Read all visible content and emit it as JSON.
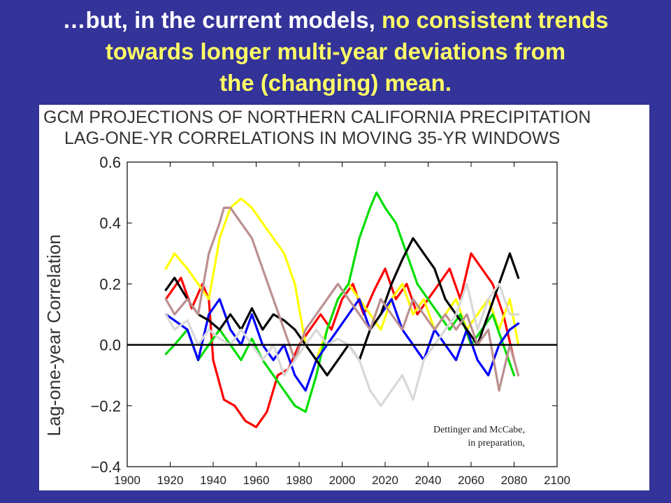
{
  "slide": {
    "title_line1_a": "…but, in the current models, ",
    "title_line1_b": "no consistent trends",
    "title_line2": "towards longer multi-year deviations from",
    "title_line3": "the (changing) mean.",
    "title_color": "#ffffff",
    "highlight_color": "#ffff66",
    "background": "#333399"
  },
  "credit": {
    "line1": "Dettinger and McCabe,",
    "line2": "in preparation,"
  },
  "chart_data": {
    "type": "line",
    "title": "GCM PROJECTIONS OF NORTHERN CALIFORNIA PRECIPITATION",
    "subtitle": "LAG-ONE-YR CORRELATIONS IN MOVING 35-YR WINDOWS",
    "xlabel": "",
    "ylabel": "Lag-one-year Correlation",
    "xlim": [
      1900,
      2100
    ],
    "ylim": [
      -0.4,
      0.6
    ],
    "xticks": [
      1900,
      1920,
      1940,
      1960,
      1980,
      2000,
      2020,
      2040,
      2060,
      2080,
      2100
    ],
    "yticks": [
      -0.4,
      -0.2,
      0.0,
      0.2,
      0.4,
      0.6
    ],
    "ytick_labels": [
      "−0.4",
      "−0.2",
      "0.0",
      "0.2",
      "0.4",
      "0.6"
    ],
    "zero_line": 0.0,
    "grid": false,
    "legend": "none",
    "series": [
      {
        "color": "#ff0000",
        "x": [
          1918,
          1925,
          1930,
          1935,
          1938,
          1940,
          1945,
          1950,
          1955,
          1960,
          1965,
          1970,
          1975,
          1980,
          1985,
          1990,
          1995,
          2000,
          2005,
          2010,
          2015,
          2020,
          2025,
          2030,
          2035,
          2040,
          2045,
          2050,
          2055,
          2060,
          2065,
          2070,
          2075,
          2080
        ],
        "y": [
          0.15,
          0.22,
          0.12,
          0.2,
          0.15,
          -0.05,
          -0.18,
          -0.2,
          -0.25,
          -0.27,
          -0.22,
          -0.1,
          -0.08,
          0.0,
          0.05,
          0.1,
          0.05,
          0.15,
          0.2,
          0.1,
          0.18,
          0.25,
          0.15,
          0.2,
          0.1,
          0.15,
          0.2,
          0.25,
          0.15,
          0.3,
          0.25,
          0.2,
          0.1,
          -0.05
        ]
      },
      {
        "color": "#ffff00",
        "x": [
          1918,
          1922,
          1928,
          1933,
          1938,
          1943,
          1948,
          1953,
          1958,
          1963,
          1968,
          1973,
          1978,
          1983,
          1988,
          1993,
          1998,
          2003,
          2008,
          2013,
          2018,
          2023,
          2028,
          2033,
          2038,
          2043,
          2048,
          2053,
          2058,
          2063,
          2068,
          2073,
          2078,
          2082
        ],
        "y": [
          0.25,
          0.3,
          0.25,
          0.2,
          0.15,
          0.35,
          0.45,
          0.48,
          0.45,
          0.4,
          0.35,
          0.3,
          0.2,
          0.0,
          -0.05,
          0.05,
          0.15,
          0.2,
          0.15,
          0.1,
          0.05,
          0.15,
          0.2,
          0.1,
          0.15,
          0.05,
          0.1,
          0.15,
          0.05,
          0.1,
          0.15,
          0.05,
          0.15,
          0.0
        ]
      },
      {
        "color": "#00dd00",
        "x": [
          1918,
          1922,
          1928,
          1933,
          1938,
          1943,
          1948,
          1953,
          1958,
          1963,
          1968,
          1973,
          1978,
          1983,
          1988,
          1993,
          1998,
          2003,
          2008,
          2013,
          2016,
          2020,
          2025,
          2030,
          2035,
          2040,
          2045,
          2050,
          2055,
          2060,
          2065,
          2070,
          2075,
          2080
        ],
        "y": [
          -0.03,
          0.0,
          0.05,
          -0.05,
          0.0,
          0.05,
          0.0,
          -0.05,
          0.02,
          -0.05,
          -0.1,
          -0.15,
          -0.2,
          -0.22,
          -0.1,
          0.05,
          0.15,
          0.2,
          0.35,
          0.45,
          0.5,
          0.45,
          0.4,
          0.3,
          0.2,
          0.15,
          0.1,
          0.05,
          0.1,
          0.0,
          0.05,
          0.1,
          0.0,
          -0.1
        ]
      },
      {
        "color": "#0000ff",
        "x": [
          1918,
          1922,
          1928,
          1933,
          1938,
          1943,
          1948,
          1953,
          1958,
          1963,
          1968,
          1973,
          1978,
          1983,
          1988,
          1993,
          1998,
          2003,
          2008,
          2013,
          2018,
          2023,
          2028,
          2033,
          2038,
          2043,
          2048,
          2053,
          2058,
          2063,
          2068,
          2073,
          2078,
          2082
        ],
        "y": [
          0.1,
          0.08,
          0.05,
          -0.05,
          0.1,
          0.15,
          0.05,
          0.0,
          0.1,
          0.0,
          -0.05,
          0.0,
          -0.1,
          -0.15,
          -0.05,
          0.0,
          0.05,
          0.1,
          0.15,
          0.05,
          0.1,
          0.15,
          0.05,
          0.0,
          -0.05,
          0.05,
          0.0,
          -0.05,
          0.05,
          -0.05,
          -0.1,
          0.0,
          0.05,
          0.07
        ]
      },
      {
        "color": "#000000",
        "x": [
          1918,
          1922,
          1928,
          1933,
          1938,
          1943,
          1948,
          1953,
          1958,
          1963,
          1968,
          1973,
          1978,
          1983,
          1988,
          1993,
          1998,
          2003,
          2008,
          2013,
          2018,
          2023,
          2028,
          2033,
          2038,
          2043,
          2048,
          2053,
          2058,
          2063,
          2068,
          2073,
          2078,
          2082
        ],
        "y": [
          0.18,
          0.22,
          0.15,
          0.1,
          0.08,
          0.05,
          0.1,
          0.05,
          0.12,
          0.05,
          0.1,
          0.08,
          0.05,
          0.0,
          -0.05,
          -0.1,
          -0.05,
          0.0,
          -0.05,
          0.05,
          0.1,
          0.2,
          0.28,
          0.35,
          0.3,
          0.25,
          0.15,
          0.1,
          0.05,
          0.0,
          0.1,
          0.2,
          0.3,
          0.22
        ]
      },
      {
        "color": "#bc8f8f",
        "x": [
          1918,
          1922,
          1928,
          1933,
          1938,
          1943,
          1945,
          1948,
          1953,
          1958,
          1963,
          1968,
          1973,
          1978,
          1983,
          1988,
          1993,
          1998,
          2003,
          2008,
          2013,
          2018,
          2023,
          2028,
          2033,
          2038,
          2043,
          2048,
          2053,
          2058,
          2063,
          2068,
          2073,
          2078,
          2082
        ],
        "y": [
          0.15,
          0.1,
          0.15,
          0.1,
          0.3,
          0.4,
          0.45,
          0.45,
          0.4,
          0.35,
          0.25,
          0.15,
          0.05,
          -0.05,
          0.05,
          0.1,
          0.15,
          0.2,
          0.15,
          0.1,
          0.05,
          0.15,
          0.1,
          0.05,
          0.15,
          0.1,
          0.05,
          0.1,
          0.05,
          0.1,
          0.0,
          0.05,
          -0.15,
          0.0,
          -0.1
        ]
      },
      {
        "color": "#d8d8d8",
        "x": [
          1918,
          1922,
          1928,
          1933,
          1938,
          1943,
          1948,
          1953,
          1958,
          1963,
          1968,
          1973,
          1978,
          1983,
          1988,
          1993,
          1998,
          2003,
          2008,
          2013,
          2018,
          2023,
          2028,
          2033,
          2038,
          2043,
          2048,
          2053,
          2058,
          2063,
          2068,
          2073,
          2078,
          2082
        ],
        "y": [
          0.1,
          0.05,
          0.08,
          0.0,
          0.05,
          0.02,
          0.0,
          0.05,
          0.0,
          -0.05,
          0.0,
          -0.1,
          -0.05,
          0.0,
          0.05,
          0.0,
          0.02,
          0.0,
          -0.05,
          -0.15,
          -0.2,
          -0.15,
          -0.1,
          -0.18,
          -0.05,
          0.0,
          0.05,
          0.1,
          0.2,
          0.05,
          0.15,
          0.2,
          0.1,
          0.1
        ]
      }
    ]
  }
}
